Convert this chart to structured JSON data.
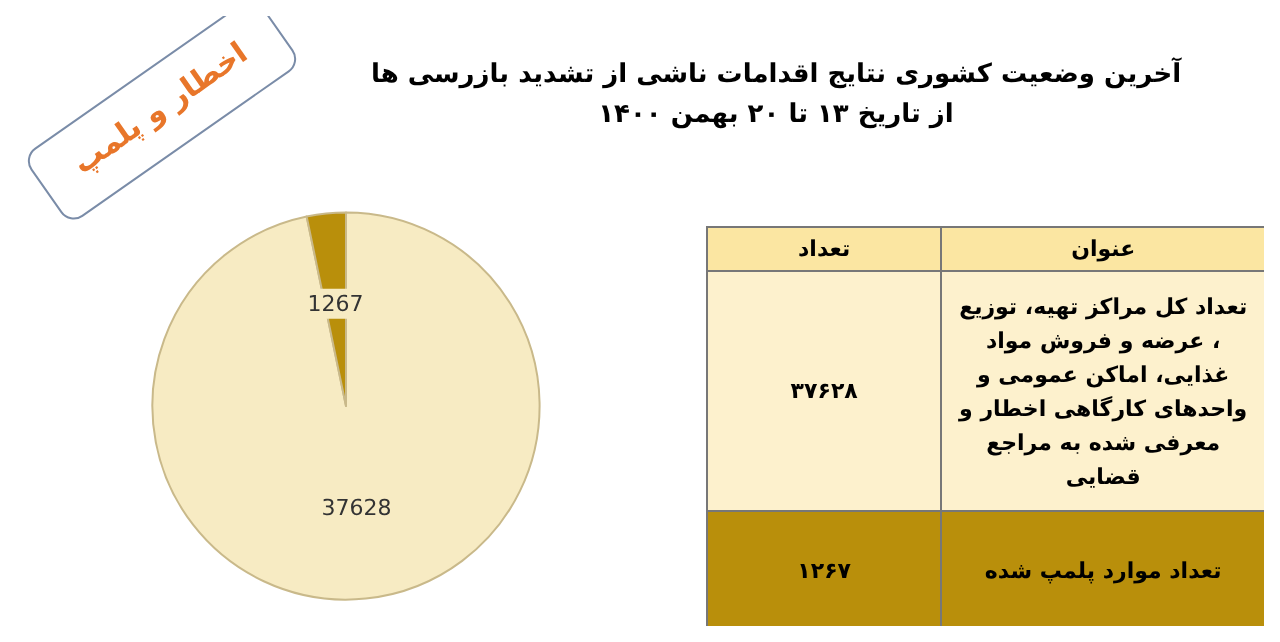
{
  "chart_data": {
    "type": "pie",
    "title": "آخرین وضعیت کشوری نتایج اقدامات ناشی از تشدید بازرسی ها",
    "subtitle": "از تاریخ  ۱۳ تا ۲۰ بهمن  ۱۴۰۰",
    "categories": [
      null,
      null
    ],
    "values": [
      37628,
      1267
    ],
    "colors": [
      "#f7ebc3",
      "#b98f0b"
    ],
    "data_labels": true,
    "annotations": [
      "اخطار و پلمپ",
      "عنوان",
      "تعداد",
      "تعداد کل مراکز تهیه، توزیع ، عرضه و فروش مواد غذایی، اماکن عمومی و واحدهای کارگاهی اخطار و معرفی شده به مراجع قضایی",
      "۳۷۶۲۸",
      "تعداد موارد پلمپ شده",
      "۱۲۶۷"
    ]
  }
}
